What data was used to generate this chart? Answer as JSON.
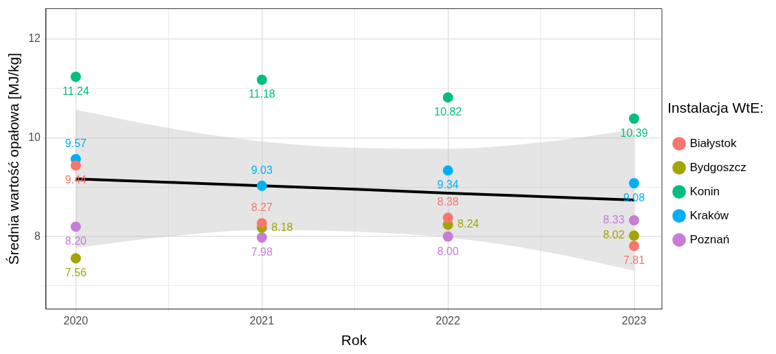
{
  "chart_data": {
    "type": "scatter",
    "xlabel": "Rok",
    "ylabel": "Średnia wartość opałowa [MJ/kg]",
    "legend_title": "Instalacja WtE:",
    "legend": "right",
    "grid": true,
    "marker": "circle",
    "x": [
      2020,
      2021,
      2022,
      2023
    ],
    "xlim": [
      2019.84,
      2023.15
    ],
    "xticks": [
      2020,
      {
        "value": 2020.5,
        "label": null
      },
      2021,
      {
        "value": 2021.5,
        "label": null
      },
      2022,
      {
        "value": 2022.5,
        "label": null
      },
      2023
    ],
    "ylim": [
      6.53,
      12.62
    ],
    "yticks": [
      {
        "value": 7,
        "label": null
      },
      8,
      {
        "value": 9,
        "label": null
      },
      10,
      {
        "value": 11,
        "label": null
      },
      12
    ],
    "series": [
      {
        "name": "Białystok",
        "color": "#f8766d",
        "values": [
          9.44,
          8.27,
          8.38,
          7.81
        ],
        "value_labels": [
          "9.44",
          "8.27",
          "8.38",
          "7.81"
        ]
      },
      {
        "name": "Bydgoszcz",
        "color": "#a3a500",
        "values": [
          7.56,
          8.18,
          8.24,
          8.02
        ],
        "value_labels": [
          "7.56",
          "8.18",
          "8.24",
          "8.02"
        ]
      },
      {
        "name": "Konin",
        "color": "#00bf7d",
        "values": [
          11.24,
          11.18,
          10.82,
          10.39
        ],
        "value_labels": [
          "11.24",
          "11.18",
          "10.82",
          "10.39"
        ]
      },
      {
        "name": "Kraków",
        "color": "#00b0f6",
        "values": [
          9.57,
          9.03,
          9.34,
          9.08
        ],
        "value_labels": [
          "9.57",
          "9.03",
          "9.34",
          "9.08"
        ]
      },
      {
        "name": "Poznań",
        "color": "#c77cd6",
        "values": [
          8.2,
          7.98,
          8.0,
          8.33
        ],
        "value_labels": [
          "8.20",
          "7.98",
          "8.00",
          "8.33"
        ]
      },
      {
        "type": "line",
        "marker": "none",
        "color": "#000000",
        "x": [
          2020,
          2020.5,
          2021,
          2021.5,
          2022,
          2022.5,
          2023
        ],
        "values": [
          9.17,
          9.1,
          9.03,
          8.96,
          8.88,
          8.81,
          8.74
        ],
        "lower": [
          7.77,
          8.0,
          8.13,
          8.1,
          7.98,
          7.71,
          7.31
        ],
        "upper": [
          10.57,
          10.2,
          9.93,
          9.8,
          9.78,
          9.91,
          10.17
        ]
      }
    ]
  }
}
